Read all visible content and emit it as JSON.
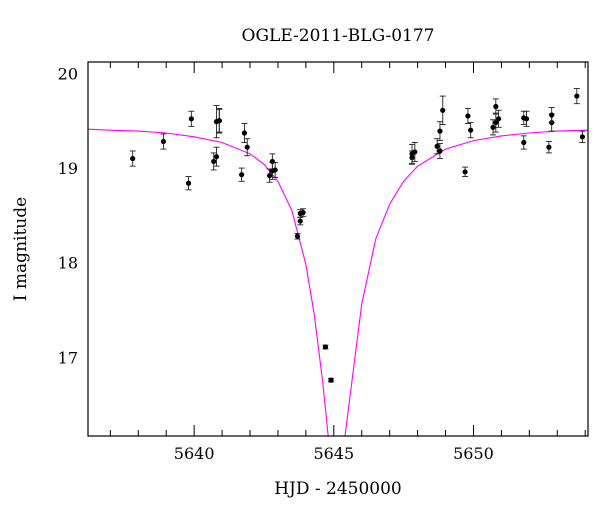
{
  "chart_data": {
    "type": "scatter",
    "title": "OGLE-2011-BLG-0177",
    "xlabel": "HJD - 2450000",
    "ylabel": "I magnitude",
    "xlim": [
      5636.2,
      5654.1
    ],
    "ylim": [
      20.12,
      16.17
    ],
    "y_inverted": true,
    "xticks": [
      5640,
      5645,
      5650
    ],
    "yticks": [
      17,
      18,
      19,
      20
    ],
    "grid": false,
    "colors": {
      "points": "#000000",
      "model": "#ff00ff",
      "frame": "#000000"
    },
    "series": [
      {
        "kind": "points-with-errorbars",
        "x": [
          5637.8,
          5638.9,
          5639.8,
          5639.9,
          5640.7,
          5640.8,
          5640.8,
          5640.9,
          5640.9,
          5641.7,
          5641.8,
          5641.9,
          5642.7,
          5642.8,
          5642.8,
          5642.9,
          5643.7,
          5643.8,
          5643.8,
          5643.9,
          5644.7,
          5644.9,
          5647.8,
          5647.8,
          5647.9,
          5648.7,
          5648.8,
          5648.8,
          5648.9,
          5649.7,
          5649.8,
          5649.9,
          5650.7,
          5650.8,
          5650.8,
          5650.9,
          5651.8,
          5651.8,
          5651.9,
          5652.7,
          5652.8,
          5652.8,
          5653.7,
          5653.9
        ],
        "y": [
          19.1,
          19.28,
          18.84,
          19.52,
          19.07,
          19.12,
          19.49,
          19.5,
          19.5,
          18.93,
          19.37,
          19.22,
          18.92,
          18.97,
          19.07,
          18.98,
          18.28,
          18.52,
          18.44,
          18.53,
          17.11,
          16.76,
          19.11,
          19.15,
          19.17,
          19.23,
          19.18,
          19.39,
          19.61,
          18.96,
          19.55,
          19.4,
          19.43,
          19.48,
          19.65,
          19.52,
          19.27,
          19.53,
          19.52,
          19.22,
          19.48,
          19.56,
          19.76,
          19.33
        ],
        "err": [
          0.08,
          0.08,
          0.07,
          0.08,
          0.09,
          0.1,
          0.17,
          0.13,
          0.12,
          0.07,
          0.1,
          0.09,
          0.07,
          0.09,
          0.08,
          0.08,
          0.03,
          0.04,
          0.04,
          0.04,
          0.02,
          0.02,
          0.07,
          0.1,
          0.1,
          0.08,
          0.08,
          0.1,
          0.15,
          0.05,
          0.08,
          0.08,
          0.08,
          0.1,
          0.08,
          0.09,
          0.07,
          0.07,
          0.08,
          0.06,
          0.09,
          0.08,
          0.08,
          0.06
        ]
      },
      {
        "kind": "model-curve",
        "x": [
          5636.2,
          5637.0,
          5638.0,
          5639.0,
          5640.0,
          5641.0,
          5642.0,
          5642.5,
          5643.0,
          5643.5,
          5644.0,
          5644.3,
          5644.6,
          5644.8,
          5645.0,
          5645.2,
          5645.4,
          5645.7,
          5646.0,
          5646.5,
          5647.0,
          5647.5,
          5648.0,
          5649.0,
          5650.0,
          5651.0,
          5652.0,
          5653.0,
          5654.1
        ],
        "y": [
          19.41,
          19.4,
          19.39,
          19.37,
          19.33,
          19.27,
          19.15,
          19.04,
          18.86,
          18.55,
          17.98,
          17.45,
          16.75,
          16.17,
          16.17,
          16.17,
          16.17,
          16.87,
          17.56,
          18.25,
          18.62,
          18.86,
          19.02,
          19.2,
          19.29,
          19.34,
          19.37,
          19.39,
          19.4
        ]
      }
    ]
  }
}
